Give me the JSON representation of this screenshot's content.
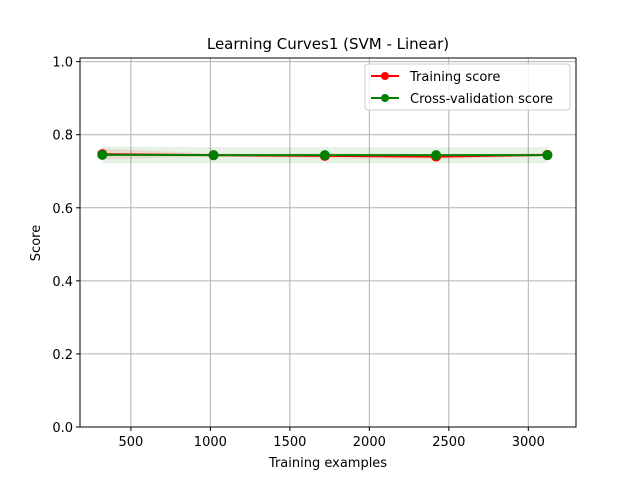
{
  "chart_data": {
    "type": "line",
    "title": "Learning Curves1 (SVM - Linear)",
    "xlabel": "Training examples",
    "ylabel": "Score",
    "xlim": [
      180,
      3300
    ],
    "ylim": [
      0.0,
      1.01
    ],
    "x_ticks": [
      500,
      1000,
      1500,
      2000,
      2500,
      3000
    ],
    "y_ticks": [
      0.0,
      0.2,
      0.4,
      0.6,
      0.8,
      1.0
    ],
    "x_tick_labels": [
      "500",
      "1000",
      "1500",
      "2000",
      "2500",
      "3000"
    ],
    "y_tick_labels": [
      "0.0",
      "0.2",
      "0.4",
      "0.6",
      "0.8",
      "1.0"
    ],
    "grid": true,
    "legend_position": "top-right",
    "x": [
      320,
      1020,
      1720,
      2420,
      3120
    ],
    "series": [
      {
        "name": "Training score",
        "color": "#ff0000",
        "band_color": "#ff0000",
        "values": [
          0.747,
          0.744,
          0.742,
          0.74,
          0.745
        ],
        "band": [
          [
            0.732,
            0.762
          ],
          [
            0.74,
            0.748
          ],
          [
            0.735,
            0.749
          ],
          [
            0.733,
            0.747
          ],
          [
            0.741,
            0.749
          ]
        ]
      },
      {
        "name": "Cross-validation score",
        "color": "#008000",
        "band_color": "#008000",
        "values": [
          0.745,
          0.744,
          0.744,
          0.744,
          0.744
        ],
        "band": [
          [
            0.722,
            0.768
          ],
          [
            0.722,
            0.766
          ],
          [
            0.722,
            0.766
          ],
          [
            0.722,
            0.766
          ],
          [
            0.722,
            0.766
          ]
        ]
      }
    ]
  }
}
